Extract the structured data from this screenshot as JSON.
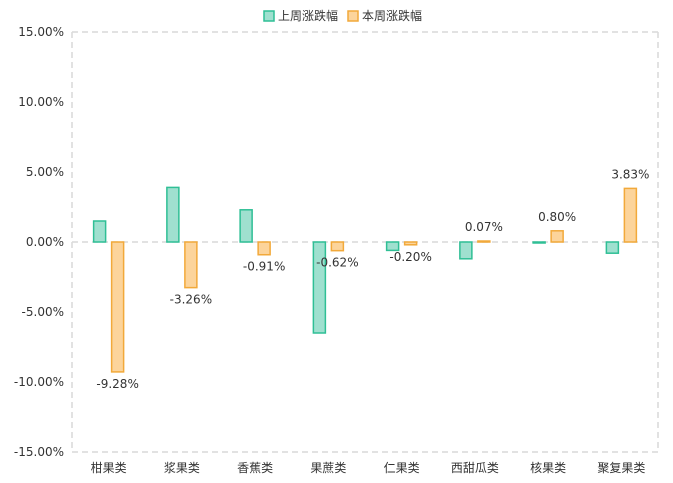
{
  "chart_data": {
    "type": "bar",
    "categories": [
      "柑果类",
      "浆果类",
      "香蕉类",
      "果蔗类",
      "仁果类",
      "西甜瓜类",
      "核果类",
      "聚复果类"
    ],
    "series": [
      {
        "name": "上周涨跌幅",
        "values": [
          1.5,
          3.9,
          2.3,
          -6.5,
          -0.6,
          -1.2,
          0.0,
          -0.8
        ],
        "fill": "#9fe0cf",
        "stroke": "#2fbf95",
        "show_labels": false
      },
      {
        "name": "本周涨跌幅",
        "values": [
          -9.28,
          -3.26,
          -0.91,
          -0.62,
          -0.2,
          0.07,
          0.8,
          3.83
        ],
        "fill": "#fcd49b",
        "stroke": "#f2a93a",
        "show_labels": true
      }
    ],
    "data_labels": [
      "-9.28%",
      "-3.26%",
      "-0.91%",
      "-0.62%",
      "-0.20%",
      "0.07%",
      "0.80%",
      "3.83%"
    ],
    "y_ticks": [
      "15.00%",
      "10.00%",
      "5.00%",
      "0.00%",
      "-5.00%",
      "-10.00%",
      "-15.00%"
    ],
    "ylim": [
      -15,
      15
    ],
    "legend_position": "top-center",
    "grid": false,
    "title": "",
    "xlabel": "",
    "ylabel": ""
  }
}
